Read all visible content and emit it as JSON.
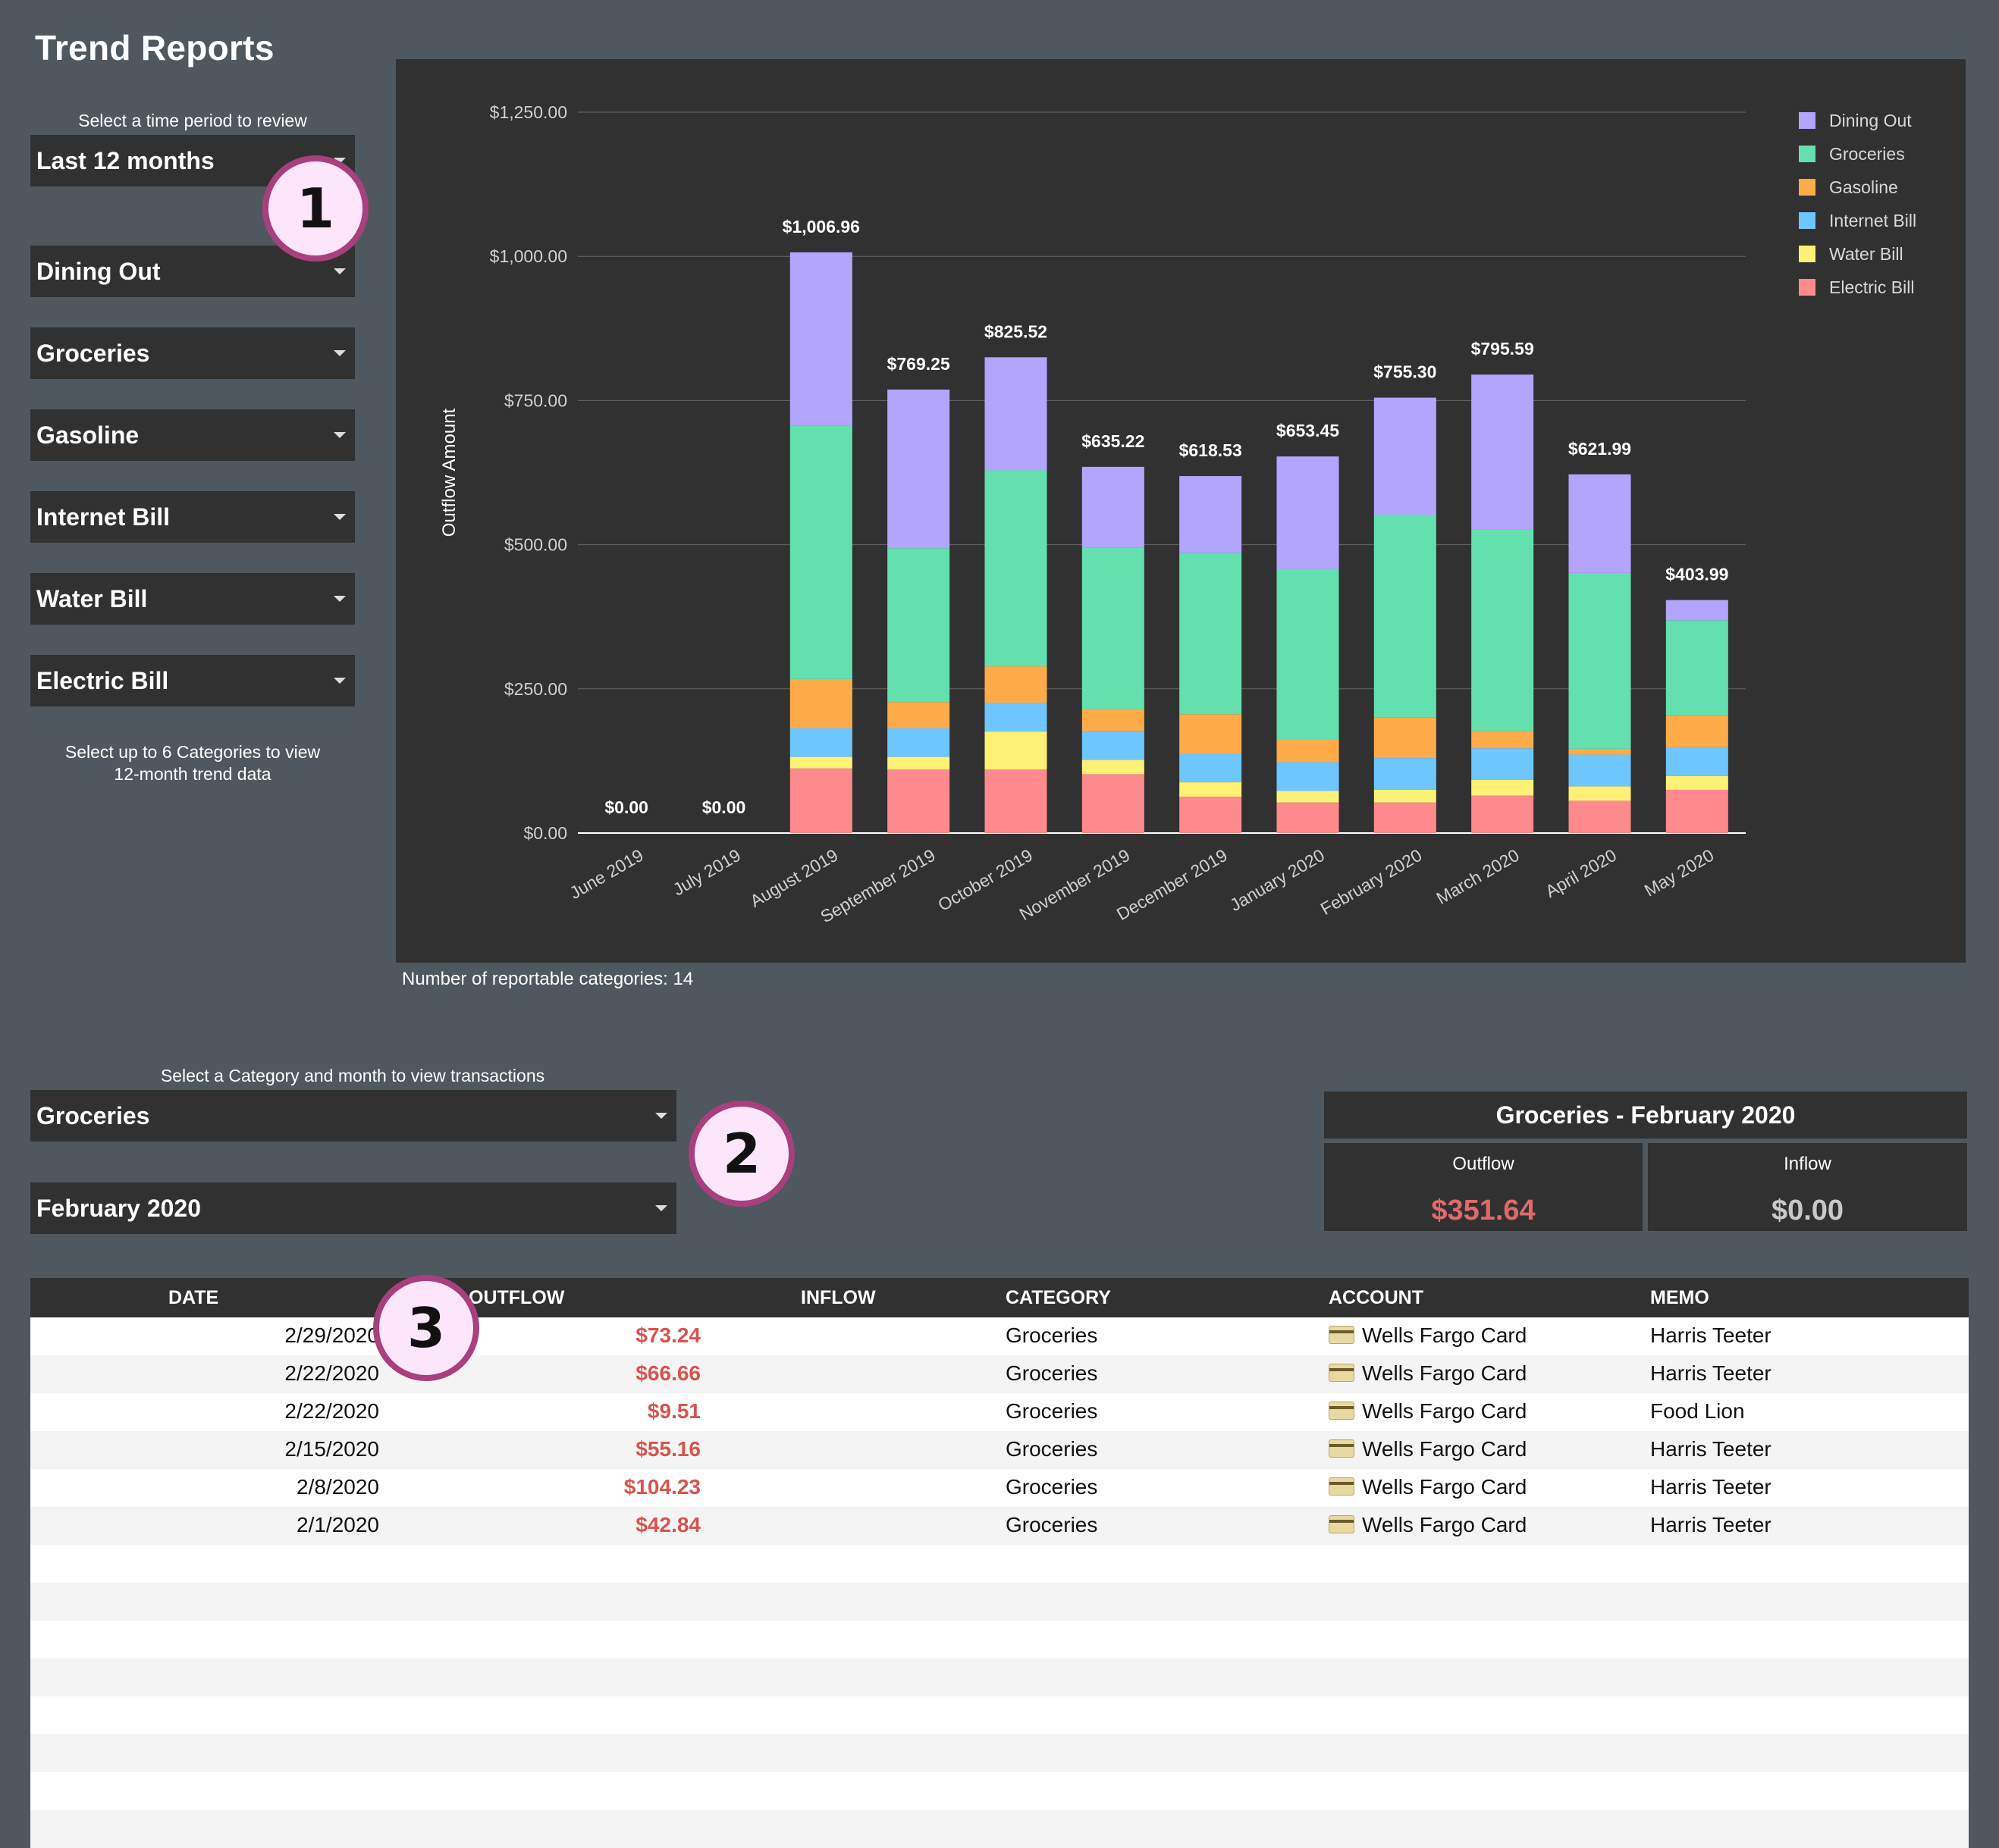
{
  "page": {
    "title": "Trend Reports",
    "period_label": "Select a time period to review",
    "period_value": "Last 12 months",
    "categories": [
      "Dining Out",
      "Groceries",
      "Gasoline",
      "Internet Bill",
      "Water Bill",
      "Electric Bill"
    ],
    "categories_hint_1": "Select up to 6 Categories to view",
    "categories_hint_2": "12-month trend data",
    "reportable_note": "Number of reportable categories: 14",
    "transactions_label": "Select a Category and month to view transactions",
    "tx_category": "Groceries",
    "tx_month": "February 2020",
    "badges": [
      "1",
      "2",
      "3"
    ]
  },
  "summary": {
    "heading": "Groceries - February 2020",
    "outflow_label": "Outflow",
    "outflow_value": "$351.64",
    "inflow_label": "Inflow",
    "inflow_value": "$0.00"
  },
  "table": {
    "headers": [
      "DATE",
      "OUTFLOW",
      "INFLOW",
      "CATEGORY",
      "ACCOUNT",
      "MEMO"
    ],
    "rows": [
      {
        "date": "2/29/2020",
        "outflow": "$73.24",
        "inflow": "",
        "category": "Groceries",
        "account": "Wells Fargo Card",
        "memo": "Harris Teeter"
      },
      {
        "date": "2/22/2020",
        "outflow": "$66.66",
        "inflow": "",
        "category": "Groceries",
        "account": "Wells Fargo Card",
        "memo": "Harris Teeter"
      },
      {
        "date": "2/22/2020",
        "outflow": "$9.51",
        "inflow": "",
        "category": "Groceries",
        "account": "Wells Fargo Card",
        "memo": "Food Lion"
      },
      {
        "date": "2/15/2020",
        "outflow": "$55.16",
        "inflow": "",
        "category": "Groceries",
        "account": "Wells Fargo Card",
        "memo": "Harris Teeter"
      },
      {
        "date": "2/8/2020",
        "outflow": "$104.23",
        "inflow": "",
        "category": "Groceries",
        "account": "Wells Fargo Card",
        "memo": "Harris Teeter"
      },
      {
        "date": "2/1/2020",
        "outflow": "$42.84",
        "inflow": "",
        "category": "Groceries",
        "account": "Wells Fargo Card",
        "memo": "Harris Teeter"
      }
    ]
  },
  "colors": {
    "background": "#4f585e",
    "panel": "#313131",
    "outflow_red": "#d9534f",
    "badge_fill": "#fde6fa",
    "badge_ring": "#a9407e"
  },
  "chart_data": {
    "type": "bar",
    "stacked": true,
    "ylabel": "Outflow Amount",
    "ylim": [
      0,
      1250
    ],
    "yticks": [
      "$0.00",
      "$250.00",
      "$500.00",
      "$750.00",
      "$1,000.00",
      "$1,250.00"
    ],
    "legend_position": "top-right",
    "categories": [
      "June 2019",
      "July 2019",
      "August 2019",
      "September 2019",
      "October 2019",
      "November 2019",
      "December 2019",
      "January 2020",
      "February 2020",
      "March 2020",
      "April 2020",
      "May 2020"
    ],
    "totals": [
      "$0.00",
      "$0.00",
      "$1,006.96",
      "$769.25",
      "$825.52",
      "$635.22",
      "$618.53",
      "$653.45",
      "$755.30",
      "$795.59",
      "$621.99",
      "$403.99"
    ],
    "series": [
      {
        "name": "Electric Bill",
        "color": "#ff8a8d",
        "values": [
          0,
          0,
          112,
          110,
          110,
          102,
          63,
          53,
          53,
          65,
          56,
          75
        ]
      },
      {
        "name": "Water Bill",
        "color": "#fff176",
        "values": [
          0,
          0,
          20,
          22,
          66,
          25,
          25,
          20,
          22,
          27,
          25,
          24
        ]
      },
      {
        "name": "Internet Bill",
        "color": "#6ec6ff",
        "values": [
          0,
          0,
          50,
          50,
          50,
          50,
          50,
          50,
          55,
          55,
          55,
          50
        ]
      },
      {
        "name": "Gasoline",
        "color": "#ffab4a",
        "values": [
          0,
          0,
          85,
          45,
          63,
          38,
          68,
          40,
          70,
          30,
          10,
          55
        ]
      },
      {
        "name": "Groceries",
        "color": "#63e0ae",
        "values": [
          0,
          0,
          440,
          267,
          340,
          280,
          280,
          295,
          352,
          350,
          305,
          165
        ]
      },
      {
        "name": "Dining Out",
        "color": "#b3a5ff",
        "values": [
          0,
          0,
          300,
          275,
          196,
          140,
          133,
          195,
          203,
          268,
          171,
          35
        ]
      }
    ]
  }
}
